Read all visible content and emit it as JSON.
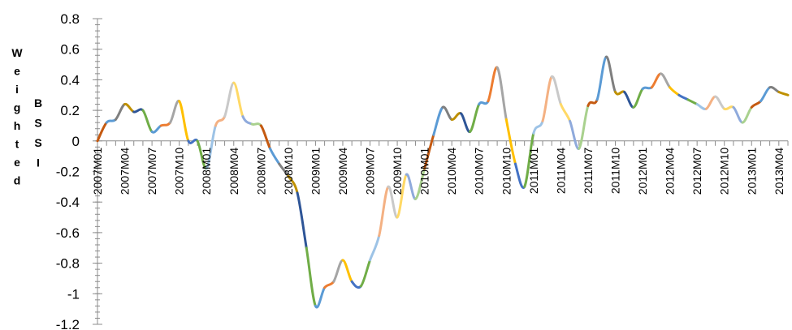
{
  "chart_data": {
    "type": "line",
    "ylabel_outer": "Weighted",
    "ylabel_inner": "BSSI",
    "ylim": [
      -1.2,
      0.8
    ],
    "yticks": [
      0.8,
      0.6,
      0.4,
      0.2,
      0,
      -0.2,
      -0.4,
      -0.6,
      -0.8,
      -1,
      -1.2
    ],
    "ytick_labels": [
      "0.8",
      "0.6",
      "0.4",
      "0.2",
      "0",
      "-0.2",
      "-0.4",
      "-0.6",
      "-0.8",
      "-1",
      "-1.2"
    ],
    "x_start": "2007M01",
    "xtick_labels": [
      "2007M01",
      "2007M04",
      "2007M07",
      "2007M10",
      "2008M01",
      "2008M04",
      "2008M07",
      "2008M10",
      "2009M01",
      "2009M04",
      "2009M07",
      "2009M10",
      "2010M01",
      "2010M04",
      "2010M07",
      "2010M10",
      "2011M01",
      "2011M04",
      "2011M07",
      "2011M10",
      "2012M01",
      "2012M04",
      "2012M07",
      "2012M10",
      "2013M01",
      "2013M04"
    ],
    "grid": false,
    "legend": "none",
    "values": [
      0.0,
      0.12,
      0.14,
      0.24,
      0.19,
      0.2,
      0.06,
      0.1,
      0.12,
      0.26,
      0.0,
      0.0,
      -0.18,
      0.1,
      0.16,
      0.38,
      0.16,
      0.11,
      0.1,
      -0.05,
      -0.15,
      -0.23,
      -0.34,
      -0.7,
      -1.08,
      -0.96,
      -0.92,
      -0.78,
      -0.92,
      -0.95,
      -0.78,
      -0.62,
      -0.3,
      -0.5,
      -0.22,
      -0.38,
      -0.18,
      0.04,
      0.22,
      0.14,
      0.18,
      0.06,
      0.24,
      0.26,
      0.48,
      0.14,
      -0.15,
      -0.3,
      0.05,
      0.13,
      0.42,
      0.24,
      0.13,
      -0.05,
      0.23,
      0.27,
      0.55,
      0.32,
      0.32,
      0.22,
      0.34,
      0.35,
      0.44,
      0.35,
      0.3,
      0.27,
      0.24,
      0.21,
      0.29,
      0.21,
      0.22,
      0.12,
      0.22,
      0.26,
      0.35,
      0.32,
      0.3
    ],
    "segment_colors": [
      "#C55A11",
      "#5B9BD5",
      "#7F7F7F",
      "#BF9000",
      "#2E5597",
      "#70AD47",
      "#5B9BD5",
      "#ED7D31",
      "#A5A5A5",
      "#FFC000",
      "#4472C4",
      "#70AD47",
      "#9DC3E6",
      "#F4B183",
      "#C9C9C9",
      "#FFD966",
      "#8FAADC",
      "#A9D18E"
    ]
  }
}
